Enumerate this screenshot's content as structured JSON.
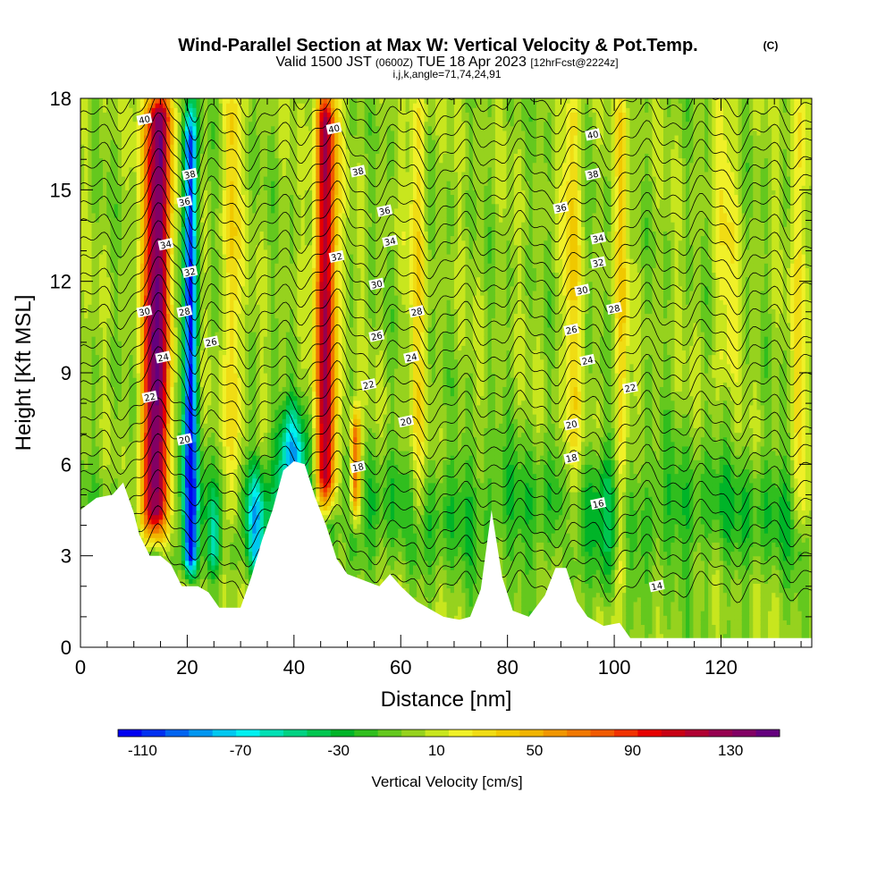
{
  "chart_data": {
    "type": "heatmap",
    "title": "Wind-Parallel Section at Max W: Vertical Velocity & Pot.Temp.",
    "title_mark": "(C)",
    "subtitle_main": "Valid 1500 JST",
    "subtitle_zulu": "(0600Z)",
    "subtitle_date": "TUE 18 Apr 2023",
    "subtitle_fcst": "[12hrFcst@2224z]",
    "subtitle2": "i,j,k,angle=71,74,24,91",
    "xlabel": "Distance [nm]",
    "ylabel": "Height [Kft MSL]",
    "xlim": [
      0,
      137
    ],
    "ylim": [
      0,
      18
    ],
    "x_ticks": [
      "0",
      "20",
      "40",
      "60",
      "80",
      "100",
      "120"
    ],
    "x_tick_values": [
      0,
      20,
      40,
      60,
      80,
      100,
      120
    ],
    "y_ticks": [
      "0",
      "3",
      "6",
      "9",
      "12",
      "15",
      "18"
    ],
    "y_tick_values": [
      0,
      3,
      6,
      9,
      12,
      15,
      18
    ],
    "colorbar_label": "Vertical Velocity [cm/s]",
    "colorbar_ticks": [
      "-110",
      "-70",
      "-30",
      "10",
      "50",
      "90",
      "130"
    ],
    "colorbar_tick_values": [
      -110,
      -70,
      -30,
      10,
      50,
      90,
      130
    ],
    "colorbar_range": [
      -120,
      150
    ],
    "colorbar_colors": [
      "#0000f0",
      "#0030f0",
      "#0064f0",
      "#0096f0",
      "#00c8f0",
      "#00f0f0",
      "#00e0b4",
      "#00d282",
      "#00c650",
      "#00b428",
      "#30be1e",
      "#64c81e",
      "#96d21e",
      "#c8e61e",
      "#f0f028",
      "#f0dc14",
      "#f0c800",
      "#f0b400",
      "#f09600",
      "#f07800",
      "#f05a00",
      "#f03200",
      "#e60000",
      "#c80014",
      "#b00032",
      "#960050",
      "#820064",
      "#64007d"
    ],
    "terrain": [
      [
        0,
        4.5
      ],
      [
        3,
        4.9
      ],
      [
        6,
        5.0
      ],
      [
        8,
        5.4
      ],
      [
        10,
        4.4
      ],
      [
        11,
        3.7
      ],
      [
        13,
        3.0
      ],
      [
        15,
        3.0
      ],
      [
        17,
        2.7
      ],
      [
        19,
        2.0
      ],
      [
        22,
        2.0
      ],
      [
        24,
        1.8
      ],
      [
        26,
        1.3
      ],
      [
        30,
        1.3
      ],
      [
        32,
        2.3
      ],
      [
        34,
        3.5
      ],
      [
        36,
        4.5
      ],
      [
        38,
        5.8
      ],
      [
        40,
        6.1
      ],
      [
        42,
        6.0
      ],
      [
        44,
        4.9
      ],
      [
        46,
        4.0
      ],
      [
        48,
        2.9
      ],
      [
        50,
        2.4
      ],
      [
        53,
        2.2
      ],
      [
        56,
        2.0
      ],
      [
        58,
        2.4
      ],
      [
        60,
        2.0
      ],
      [
        63,
        1.5
      ],
      [
        66,
        1.2
      ],
      [
        68,
        1.0
      ],
      [
        71,
        0.9
      ],
      [
        73,
        1.0
      ],
      [
        75,
        1.9
      ],
      [
        77,
        4.5
      ],
      [
        79,
        2.3
      ],
      [
        81,
        1.2
      ],
      [
        84,
        1.0
      ],
      [
        87,
        1.7
      ],
      [
        89,
        2.6
      ],
      [
        91,
        2.6
      ],
      [
        93,
        1.5
      ],
      [
        95,
        1.0
      ],
      [
        98,
        0.7
      ],
      [
        101,
        0.8
      ],
      [
        103,
        0.3
      ],
      [
        137,
        0.3
      ]
    ],
    "updrafts": [
      {
        "x": 14.2,
        "z_min": 3.0,
        "z_max": 18,
        "halfwidth": 2.4,
        "peak": 145,
        "tilt": 0.06
      },
      {
        "x": 46.0,
        "z_min": 4.0,
        "z_max": 18,
        "halfwidth": 1.9,
        "peak": 120,
        "tilt": 0.0
      },
      {
        "x": 51.5,
        "z_min": 3.5,
        "z_max": 7.5,
        "halfwidth": 1.0,
        "peak": 90,
        "tilt": 0.0
      },
      {
        "x": 28.5,
        "z_min": 3.0,
        "z_max": 18,
        "halfwidth": 1.4,
        "peak": 40,
        "tilt": 0.0
      },
      {
        "x": 63.0,
        "z_min": 3.0,
        "z_max": 18,
        "halfwidth": 1.6,
        "peak": 28,
        "tilt": 0.0
      },
      {
        "x": 92.0,
        "z_min": 2.5,
        "z_max": 18,
        "halfwidth": 1.5,
        "peak": 35,
        "tilt": 0.0
      },
      {
        "x": 101.5,
        "z_min": 1.0,
        "z_max": 18,
        "halfwidth": 1.3,
        "peak": 32,
        "tilt": 0.0
      },
      {
        "x": 121.0,
        "z_min": 8.0,
        "z_max": 18,
        "halfwidth": 2.0,
        "peak": 22,
        "tilt": 0.0
      },
      {
        "x": 135.0,
        "z_min": 3.0,
        "z_max": 18,
        "halfwidth": 1.5,
        "peak": 28,
        "tilt": 0.0
      }
    ],
    "downdrafts": [
      {
        "x": 20.5,
        "z_min": 2.0,
        "z_max": 18,
        "halfwidth": 1.3,
        "peak": -110
      },
      {
        "x": 39.5,
        "z_min": 3.5,
        "z_max": 8.0,
        "halfwidth": 2.8,
        "peak": -75
      },
      {
        "x": 33.0,
        "z_min": 2.0,
        "z_max": 6.0,
        "halfwidth": 1.5,
        "peak": -55
      },
      {
        "x": 25.0,
        "z_min": 2.0,
        "z_max": 5.0,
        "halfwidth": 1.2,
        "peak": -40
      },
      {
        "x": 98.0,
        "z_min": 1.0,
        "z_max": 7.0,
        "halfwidth": 2.5,
        "peak": -18
      }
    ],
    "theta_labels": [
      {
        "text": "40",
        "x": 12,
        "z": 17.3
      },
      {
        "text": "38",
        "x": 20.5,
        "z": 15.5
      },
      {
        "text": "36",
        "x": 19.5,
        "z": 14.6
      },
      {
        "text": "34",
        "x": 16,
        "z": 13.2
      },
      {
        "text": "32",
        "x": 20.5,
        "z": 12.3
      },
      {
        "text": "30",
        "x": 12,
        "z": 11.0
      },
      {
        "text": "28",
        "x": 19.5,
        "z": 11.0
      },
      {
        "text": "26",
        "x": 24.5,
        "z": 10.0
      },
      {
        "text": "24",
        "x": 15.5,
        "z": 9.5
      },
      {
        "text": "22",
        "x": 13,
        "z": 8.2
      },
      {
        "text": "20",
        "x": 19.5,
        "z": 6.8
      },
      {
        "text": "40",
        "x": 47.5,
        "z": 17.0
      },
      {
        "text": "38",
        "x": 52,
        "z": 15.6
      },
      {
        "text": "36",
        "x": 57,
        "z": 14.3
      },
      {
        "text": "34",
        "x": 58,
        "z": 13.3
      },
      {
        "text": "32",
        "x": 48,
        "z": 12.8
      },
      {
        "text": "30",
        "x": 55.5,
        "z": 11.9
      },
      {
        "text": "28",
        "x": 63,
        "z": 11.0
      },
      {
        "text": "26",
        "x": 55.5,
        "z": 10.2
      },
      {
        "text": "24",
        "x": 62,
        "z": 9.5
      },
      {
        "text": "22",
        "x": 54,
        "z": 8.6
      },
      {
        "text": "20",
        "x": 61,
        "z": 7.4
      },
      {
        "text": "18",
        "x": 52,
        "z": 5.9
      },
      {
        "text": "40",
        "x": 96,
        "z": 16.8
      },
      {
        "text": "38",
        "x": 96,
        "z": 15.5
      },
      {
        "text": "36",
        "x": 90,
        "z": 14.4
      },
      {
        "text": "34",
        "x": 97,
        "z": 13.4
      },
      {
        "text": "32",
        "x": 97,
        "z": 12.6
      },
      {
        "text": "30",
        "x": 94,
        "z": 11.7
      },
      {
        "text": "28",
        "x": 100,
        "z": 11.1
      },
      {
        "text": "26",
        "x": 92,
        "z": 10.4
      },
      {
        "text": "24",
        "x": 95,
        "z": 9.4
      },
      {
        "text": "22",
        "x": 103,
        "z": 8.5
      },
      {
        "text": "20",
        "x": 92,
        "z": 7.3
      },
      {
        "text": "18",
        "x": 92,
        "z": 6.2
      },
      {
        "text": "16",
        "x": 97,
        "z": 4.7
      },
      {
        "text": "14",
        "x": 108,
        "z": 2.0
      }
    ]
  }
}
